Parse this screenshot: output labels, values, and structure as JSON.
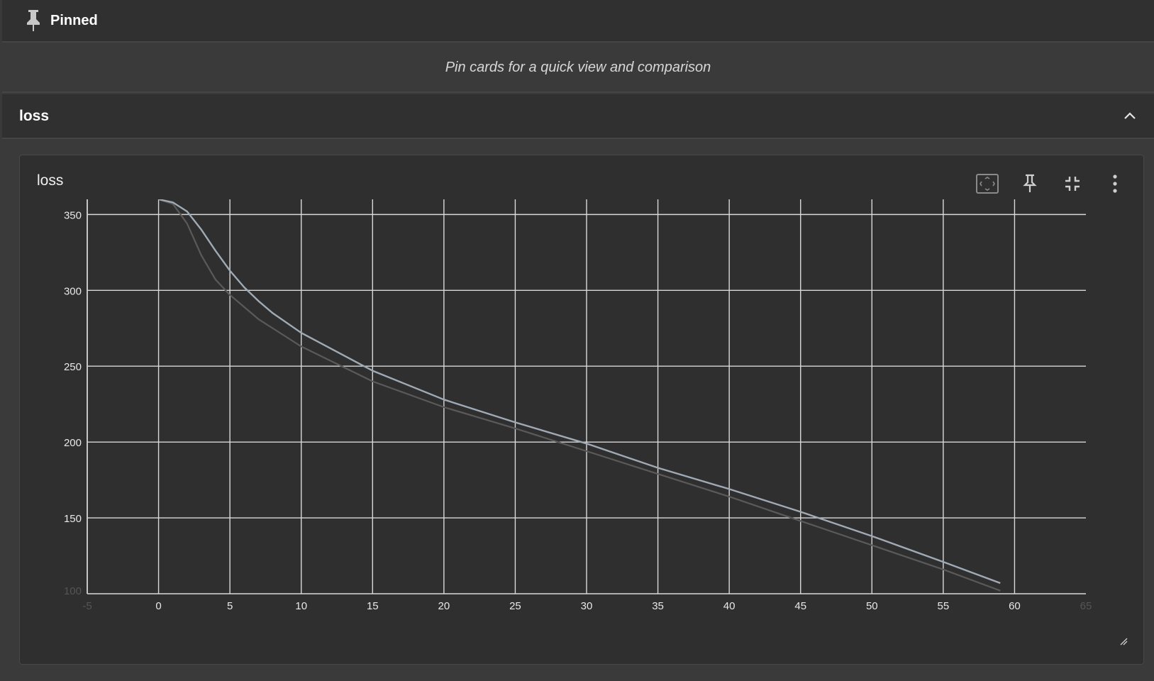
{
  "pinned": {
    "title": "Pinned",
    "empty_message": "Pin cards for a quick view and comparison"
  },
  "group": {
    "title": "loss"
  },
  "card": {
    "title": "loss",
    "toolbar": {
      "fit_icon": "fit-to-domain-icon",
      "pin_icon": "pin-icon",
      "collapse_icon": "collapse-icon",
      "menu_icon": "more-vert-icon"
    }
  },
  "colors": {
    "background": "#3a3a3a",
    "panel": "#303030",
    "grid": "#d9d9d9",
    "series_raw": "#5a5a5a",
    "series_smoothed": "#a0aab4"
  },
  "chart_data": {
    "type": "line",
    "title": "",
    "xlabel": "",
    "ylabel": "",
    "xlim": [
      -5,
      65
    ],
    "ylim": [
      100,
      360
    ],
    "xticks": [
      -5,
      0,
      5,
      10,
      15,
      20,
      25,
      30,
      35,
      40,
      45,
      50,
      55,
      60,
      65
    ],
    "xtick_labels": [
      "-5",
      "0",
      "5",
      "10",
      "15",
      "20",
      "25",
      "30",
      "35",
      "40",
      "45",
      "50",
      "55",
      "60",
      "65"
    ],
    "yticks": [
      100,
      150,
      200,
      250,
      300,
      350
    ],
    "ytick_labels": [
      "100",
      "150",
      "200",
      "250",
      "300",
      "350"
    ],
    "grid": true,
    "series": [
      {
        "x": [
          0,
          1,
          2,
          3,
          4,
          5,
          7,
          10,
          15,
          20,
          25,
          30,
          35,
          40,
          45,
          50,
          55,
          59
        ],
        "values": [
          360,
          357,
          344,
          323,
          307,
          297,
          281,
          263,
          240,
          223,
          209,
          194,
          179,
          164,
          148,
          132,
          116,
          102
        ]
      },
      {
        "x": [
          0,
          1,
          2,
          3,
          4,
          5,
          6,
          7,
          8,
          10,
          12,
          15,
          20,
          25,
          30,
          35,
          40,
          45,
          50,
          55,
          59
        ],
        "values": [
          360,
          358,
          352,
          340,
          326,
          313,
          302,
          293,
          285,
          272,
          262,
          247,
          228,
          213,
          199,
          183,
          169,
          154,
          138,
          121,
          107
        ]
      }
    ]
  }
}
